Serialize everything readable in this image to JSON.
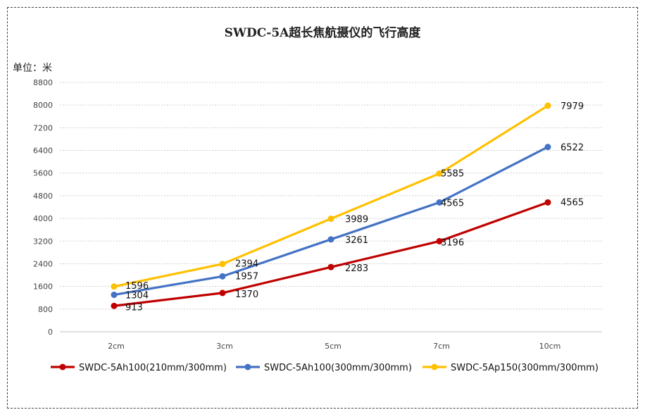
{
  "chart_data": {
    "type": "line",
    "title": "SWDC-5A超长焦航摄仪的飞行高度",
    "unit_label": "单位：米",
    "categories": [
      "2cm",
      "3cm",
      "5cm",
      "7cm",
      "10cm"
    ],
    "ylim": [
      0,
      8800
    ],
    "yticks": [
      0,
      800,
      1600,
      2400,
      3200,
      4000,
      4800,
      5600,
      6400,
      7200,
      8000,
      8800
    ],
    "grid": true,
    "legend_position": "bottom",
    "series": [
      {
        "name": "SWDC-5Ah100(210mm/300mm)",
        "color": "#c00000",
        "values": [
          913,
          1370,
          2283,
          3196,
          4565
        ]
      },
      {
        "name": "SWDC-5Ah100(300mm/300mm)",
        "color": "#4472c4",
        "values": [
          1304,
          1957,
          3261,
          4565,
          6522
        ]
      },
      {
        "name": "SWDC-5Ap150(300mm/300mm)",
        "color": "#ffc000",
        "values": [
          1596,
          2394,
          3989,
          5585,
          7979
        ]
      }
    ]
  }
}
